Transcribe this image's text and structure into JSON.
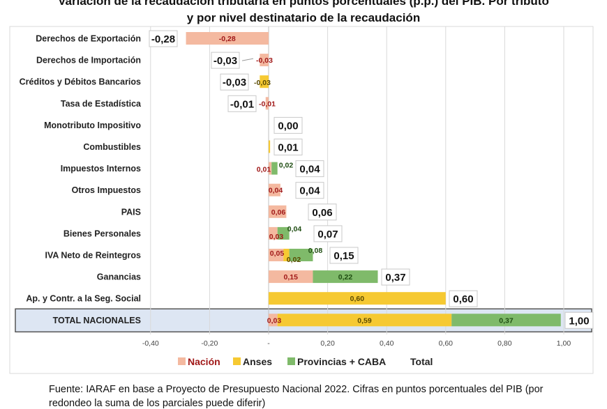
{
  "chart_data": {
    "type": "bar",
    "orientation": "horizontal",
    "stacked": true,
    "title": "Variación de la recaudación tributaria en puntos porcentuales (p.p.) del PIB. Por tributo",
    "subtitle": "y por nivel destinatario de la recaudación",
    "categories": [
      "Derechos de Exportación",
      "Derechos de Importación",
      "Créditos y Débitos Bancarios",
      "Tasa de Estadística",
      "Monotributo Impositivo",
      "Combustibles",
      "Impuestos Internos",
      "Otros Impuestos",
      "PAIS",
      "Bienes Personales",
      "IVA Neto de Reintegros",
      "Ganancias",
      "Ap. y Contr. a la Seg. Social",
      "TOTAL NACIONALES"
    ],
    "series": [
      {
        "name": "Nación",
        "color": "#f4b9a0",
        "label_color": "#a01818",
        "values": [
          -0.28,
          -0.03,
          0,
          -0.01,
          0,
          0,
          0.01,
          0.04,
          0.06,
          0.03,
          0.05,
          0.15,
          0,
          0.03
        ],
        "labels": [
          "-0,28",
          "-0,03",
          "",
          "-0,01",
          "",
          "",
          "0,01",
          "0,04",
          "0,06",
          "0,03",
          "0,05",
          "0,15",
          "",
          "0,03"
        ]
      },
      {
        "name": "Anses",
        "color": "#f6c932",
        "label_color": "#5a4a00",
        "values": [
          0,
          0,
          -0.03,
          0,
          0,
          0.005,
          0,
          0,
          0,
          0,
          0.02,
          0,
          0.6,
          0.59
        ],
        "labels": [
          "",
          "",
          "-0,03",
          "",
          "",
          "",
          "",
          "",
          "",
          "",
          "0,02",
          "",
          "0,60",
          "0,59"
        ]
      },
      {
        "name": "Provincias + CABA",
        "color": "#7fba6a",
        "label_color": "#1f4d12",
        "values": [
          0,
          0,
          0,
          0,
          0,
          0,
          0.02,
          0,
          0,
          0.04,
          0.08,
          0.22,
          0,
          0.37
        ],
        "labels": [
          "",
          "",
          "",
          "",
          "",
          "",
          "0,02",
          "",
          "",
          "0,04",
          "0,08",
          "0,22",
          "",
          "0,37"
        ]
      }
    ],
    "totals": [
      -0.28,
      -0.03,
      -0.03,
      -0.01,
      0.0,
      0.01,
      0.04,
      0.04,
      0.06,
      0.07,
      0.15,
      0.37,
      0.6,
      1.0
    ],
    "total_labels": [
      "-0,28",
      "-0,03",
      "-0,03",
      "-0,01",
      "0,00",
      "0,01",
      "0,04",
      "0,04",
      "0,06",
      "0,07",
      "0,15",
      "0,37",
      "0,60",
      "1,00"
    ],
    "xlim": [
      -0.4,
      1.0
    ],
    "xticks": [
      -0.4,
      -0.2,
      0,
      0.2,
      0.4,
      0.6,
      0.8,
      1.0
    ],
    "xtick_labels": [
      "-0,40",
      "-0,20",
      "-",
      "0,20",
      "0,40",
      "0,60",
      "0,80",
      "1,00"
    ],
    "xlabel": "",
    "ylabel": "",
    "grid": true,
    "legend": {
      "position": "bottom",
      "entries": [
        "Nación",
        "Anses",
        "Provincias + CABA",
        "Total"
      ]
    },
    "highlight_row": "TOTAL NACIONALES"
  },
  "source_note": "Fuente: IARAF en base a Proyecto de Presupuesto Nacional 2022. Cifras en puntos porcentuales del PIB (por",
  "source_note_cont": "redondeo la suma de los parciales puede diferir)"
}
